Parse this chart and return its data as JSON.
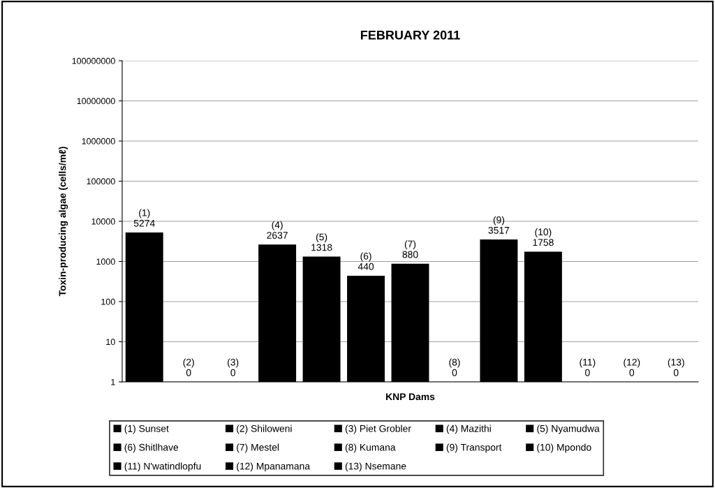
{
  "chart_data": {
    "type": "bar",
    "title": "FEBRUARY 2011",
    "xlabel": "KNP Dams",
    "ylabel": "Toxin-producing algae (cells/mℓ)",
    "categories": [
      null,
      null,
      null,
      null,
      null,
      null,
      null,
      null,
      null,
      null,
      null,
      null,
      null
    ],
    "log": "y",
    "ylim": [
      1,
      100000000
    ],
    "yticks": [
      1,
      10,
      100,
      1000,
      10000,
      100000,
      1000000,
      10000000,
      100000000
    ],
    "grid": "y",
    "legend": "bottom",
    "series": [
      {
        "name": "(1) Sunset",
        "color": "#000000",
        "values": [
          5274,
          null,
          null,
          null,
          null,
          null,
          null,
          null,
          null,
          null,
          null,
          null,
          null
        ],
        "value_labels": [
          "(1)\n5274",
          null,
          null,
          null,
          null,
          null,
          null,
          null,
          null,
          null,
          null,
          null,
          null
        ]
      },
      {
        "name": "(2) Shiloweni",
        "color": "#000000",
        "values": [
          null,
          null,
          null,
          null,
          null,
          null,
          null,
          null,
          null,
          null,
          null,
          null,
          null
        ],
        "value_labels": [
          null,
          "(2)\n0",
          null,
          null,
          null,
          null,
          null,
          null,
          null,
          null,
          null,
          null,
          null
        ]
      },
      {
        "name": "(3) Piet Grobler",
        "color": "#000000",
        "values": [
          null,
          null,
          null,
          null,
          null,
          null,
          null,
          null,
          null,
          null,
          null,
          null,
          null
        ],
        "value_labels": [
          null,
          null,
          "(3)\n0",
          null,
          null,
          null,
          null,
          null,
          null,
          null,
          null,
          null,
          null
        ]
      },
      {
        "name": "(4) Mazithi",
        "color": "#000000",
        "values": [
          null,
          null,
          null,
          2637,
          null,
          null,
          null,
          null,
          null,
          null,
          null,
          null,
          null
        ],
        "value_labels": [
          null,
          null,
          null,
          "(4)\n2637",
          null,
          null,
          null,
          null,
          null,
          null,
          null,
          null,
          null
        ]
      },
      {
        "name": "(5) Nyamudwa",
        "color": "#000000",
        "values": [
          null,
          null,
          null,
          null,
          1318,
          null,
          null,
          null,
          null,
          null,
          null,
          null,
          null
        ],
        "value_labels": [
          null,
          null,
          null,
          null,
          "(5)\n1318",
          null,
          null,
          null,
          null,
          null,
          null,
          null,
          null
        ]
      },
      {
        "name": "(6) Shitlhave",
        "color": "#000000",
        "values": [
          null,
          null,
          null,
          null,
          null,
          440,
          null,
          null,
          null,
          null,
          null,
          null,
          null
        ],
        "value_labels": [
          null,
          null,
          null,
          null,
          null,
          "(6)\n440",
          null,
          null,
          null,
          null,
          null,
          null,
          null
        ]
      },
      {
        "name": "(7) Mestel",
        "color": "#000000",
        "values": [
          null,
          null,
          null,
          null,
          null,
          null,
          880,
          null,
          null,
          null,
          null,
          null,
          null
        ],
        "value_labels": [
          null,
          null,
          null,
          null,
          null,
          null,
          "(7)\n880",
          null,
          null,
          null,
          null,
          null,
          null
        ]
      },
      {
        "name": "(8) Kumana",
        "color": "#000000",
        "values": [
          null,
          null,
          null,
          null,
          null,
          null,
          null,
          null,
          null,
          null,
          null,
          null,
          null
        ],
        "value_labels": [
          null,
          null,
          null,
          null,
          null,
          null,
          null,
          "(8)\n0",
          null,
          null,
          null,
          null,
          null
        ]
      },
      {
        "name": "(9) Transport",
        "color": "#000000",
        "values": [
          null,
          null,
          null,
          null,
          null,
          null,
          null,
          null,
          3517,
          null,
          null,
          null,
          null
        ],
        "value_labels": [
          null,
          null,
          null,
          null,
          null,
          null,
          null,
          null,
          "(9)\n3517",
          null,
          null,
          null,
          null
        ]
      },
      {
        "name": "(10) Mpondo",
        "color": "#000000",
        "values": [
          null,
          null,
          null,
          null,
          null,
          null,
          null,
          null,
          null,
          1758,
          null,
          null,
          null
        ],
        "value_labels": [
          null,
          null,
          null,
          null,
          null,
          null,
          null,
          null,
          null,
          "(10)\n1758",
          null,
          null,
          null
        ]
      },
      {
        "name": "(11) N'watindlopfu",
        "color": "#000000",
        "values": [
          null,
          null,
          null,
          null,
          null,
          null,
          null,
          null,
          null,
          null,
          null,
          null,
          null
        ],
        "value_labels": [
          null,
          null,
          null,
          null,
          null,
          null,
          null,
          null,
          null,
          null,
          "(11)\n0",
          null,
          null
        ]
      },
      {
        "name": "(12) Mpanamana",
        "color": "#000000",
        "values": [
          null,
          null,
          null,
          null,
          null,
          null,
          null,
          null,
          null,
          null,
          null,
          null,
          null
        ],
        "value_labels": [
          null,
          null,
          null,
          null,
          null,
          null,
          null,
          null,
          null,
          null,
          null,
          "(12)\n0",
          null
        ]
      },
      {
        "name": "(13) Nsemane",
        "color": "#000000",
        "values": [
          null,
          null,
          null,
          null,
          null,
          null,
          null,
          null,
          null,
          null,
          null,
          null,
          null
        ],
        "value_labels": [
          null,
          null,
          null,
          null,
          null,
          null,
          null,
          null,
          null,
          null,
          null,
          null,
          "(13)\n0"
        ]
      }
    ]
  }
}
